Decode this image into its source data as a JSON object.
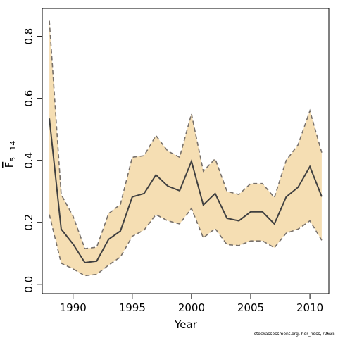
{
  "chart_data": {
    "type": "line",
    "xlabel": "Year",
    "ylabel": "F",
    "ylabel_sub": "5−14",
    "xlim": [
      1987.4,
      2011.6
    ],
    "ylim": [
      -0.03,
      0.89
    ],
    "x_ticks": [
      1990,
      1995,
      2000,
      2005,
      2010
    ],
    "y_ticks": [
      0.0,
      0.2,
      0.4,
      0.6,
      0.8
    ],
    "y_tick_labels": [
      "0.0",
      "0.2",
      "0.4",
      "0.6",
      "0.8"
    ],
    "grid": false,
    "colors": {
      "band": "#f5deb3",
      "bound_line": "#77706a",
      "estimate_line": "#404040"
    },
    "series": [
      {
        "role": "estimate",
        "x": [
          1988,
          1989,
          1990,
          1991,
          1992,
          1993,
          1994,
          1995,
          1996,
          1997,
          1998,
          1999,
          2000,
          2001,
          2002,
          2003,
          2004,
          2005,
          2006,
          2007,
          2008,
          2009,
          2010,
          2011
        ],
        "values": [
          0.535,
          0.178,
          0.13,
          0.07,
          0.075,
          0.145,
          0.172,
          0.282,
          0.293,
          0.353,
          0.317,
          0.302,
          0.397,
          0.256,
          0.293,
          0.213,
          0.205,
          0.234,
          0.234,
          0.195,
          0.282,
          0.313,
          0.38,
          0.283
        ]
      },
      {
        "role": "upper",
        "x": [
          1988,
          1989,
          1990,
          1991,
          1992,
          1993,
          1994,
          1995,
          1996,
          1997,
          1998,
          1999,
          2000,
          2001,
          2002,
          2003,
          2004,
          2005,
          2006,
          2007,
          2008,
          2009,
          2010,
          2011
        ],
        "values": [
          0.85,
          0.29,
          0.22,
          0.115,
          0.12,
          0.228,
          0.258,
          0.41,
          0.415,
          0.48,
          0.43,
          0.41,
          0.55,
          0.365,
          0.405,
          0.3,
          0.29,
          0.325,
          0.325,
          0.28,
          0.4,
          0.45,
          0.56,
          0.425
        ]
      },
      {
        "role": "lower",
        "x": [
          1988,
          1989,
          1990,
          1991,
          1992,
          1993,
          1994,
          1995,
          1996,
          1997,
          1998,
          1999,
          2000,
          2001,
          2002,
          2003,
          2004,
          2005,
          2006,
          2007,
          2008,
          2009,
          2010,
          2011
        ],
        "values": [
          0.225,
          0.068,
          0.05,
          0.028,
          0.032,
          0.062,
          0.088,
          0.155,
          0.175,
          0.225,
          0.205,
          0.195,
          0.245,
          0.15,
          0.18,
          0.128,
          0.125,
          0.14,
          0.14,
          0.118,
          0.165,
          0.178,
          0.205,
          0.142
        ]
      }
    ]
  },
  "footer": {
    "credit": "stockassessment.org, her_noss, r2635"
  }
}
